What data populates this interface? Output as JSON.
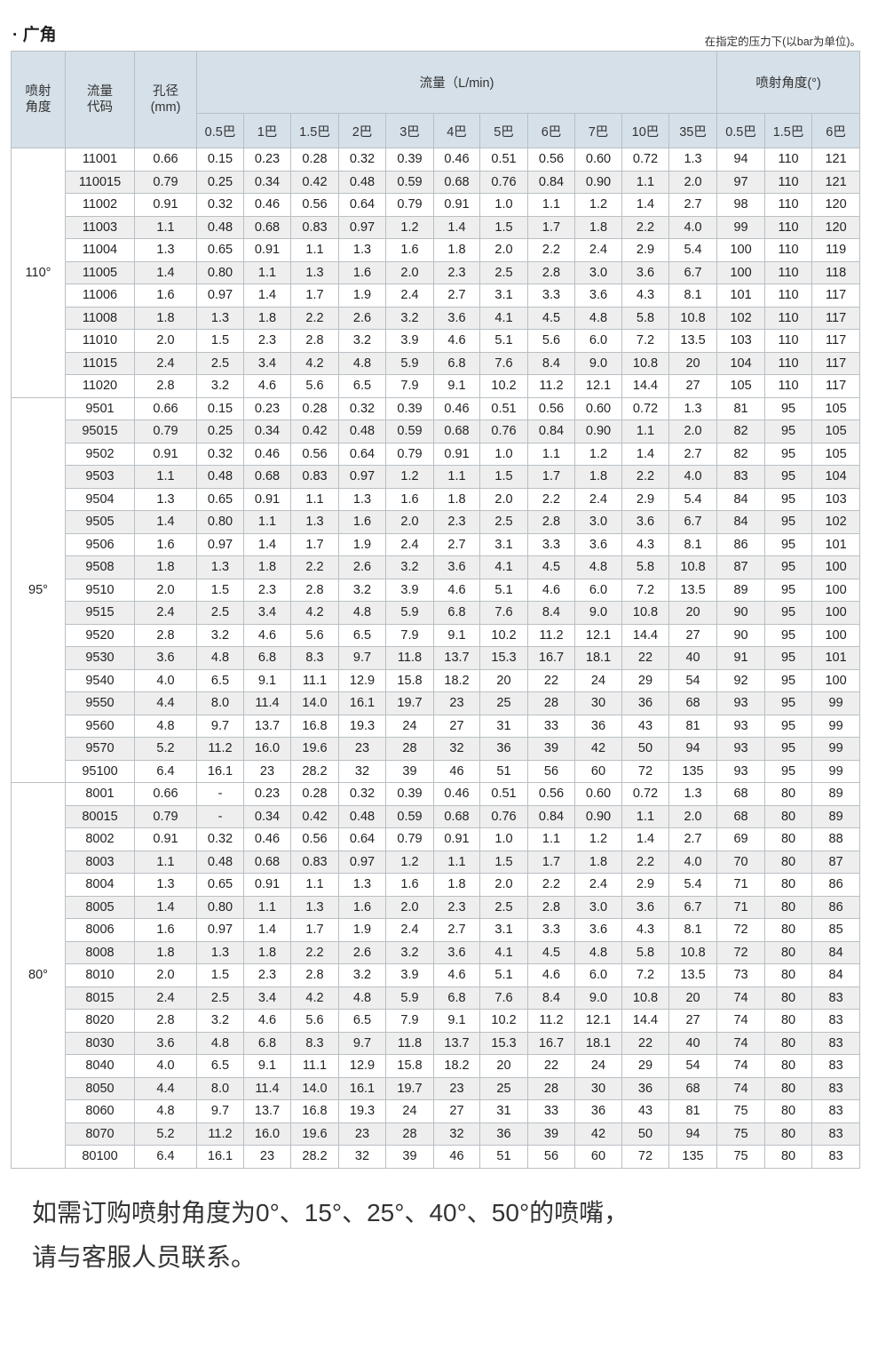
{
  "title": "· 广角",
  "note": "在指定的压力下(以bar为单位)。",
  "header": {
    "spray_angle": "喷射\n角度",
    "flow_code": "流量\n代码",
    "orifice": "孔径\n(mm)",
    "flow_group": "流量（L/min)",
    "angle_group": "喷射角度(°)",
    "flow_pressures": [
      "0.5巴",
      "1巴",
      "1.5巴",
      "2巴",
      "3巴",
      "4巴",
      "5巴",
      "6巴",
      "7巴",
      "10巴",
      "35巴"
    ],
    "angle_pressures": [
      "0.5巴",
      "1.5巴",
      "6巴"
    ]
  },
  "groups": [
    {
      "angle": "110°",
      "rows": [
        [
          "11001",
          "0.66",
          "0.15",
          "0.23",
          "0.28",
          "0.32",
          "0.39",
          "0.46",
          "0.51",
          "0.56",
          "0.60",
          "0.72",
          "1.3",
          "94",
          "110",
          "121"
        ],
        [
          "110015",
          "0.79",
          "0.25",
          "0.34",
          "0.42",
          "0.48",
          "0.59",
          "0.68",
          "0.76",
          "0.84",
          "0.90",
          "1.1",
          "2.0",
          "97",
          "110",
          "121"
        ],
        [
          "11002",
          "0.91",
          "0.32",
          "0.46",
          "0.56",
          "0.64",
          "0.79",
          "0.91",
          "1.0",
          "1.1",
          "1.2",
          "1.4",
          "2.7",
          "98",
          "110",
          "120"
        ],
        [
          "11003",
          "1.1",
          "0.48",
          "0.68",
          "0.83",
          "0.97",
          "1.2",
          "1.4",
          "1.5",
          "1.7",
          "1.8",
          "2.2",
          "4.0",
          "99",
          "110",
          "120"
        ],
        [
          "11004",
          "1.3",
          "0.65",
          "0.91",
          "1.1",
          "1.3",
          "1.6",
          "1.8",
          "2.0",
          "2.2",
          "2.4",
          "2.9",
          "5.4",
          "100",
          "110",
          "119"
        ],
        [
          "11005",
          "1.4",
          "0.80",
          "1.1",
          "1.3",
          "1.6",
          "2.0",
          "2.3",
          "2.5",
          "2.8",
          "3.0",
          "3.6",
          "6.7",
          "100",
          "110",
          "118"
        ],
        [
          "11006",
          "1.6",
          "0.97",
          "1.4",
          "1.7",
          "1.9",
          "2.4",
          "2.7",
          "3.1",
          "3.3",
          "3.6",
          "4.3",
          "8.1",
          "101",
          "110",
          "117"
        ],
        [
          "11008",
          "1.8",
          "1.3",
          "1.8",
          "2.2",
          "2.6",
          "3.2",
          "3.6",
          "4.1",
          "4.5",
          "4.8",
          "5.8",
          "10.8",
          "102",
          "110",
          "117"
        ],
        [
          "11010",
          "2.0",
          "1.5",
          "2.3",
          "2.8",
          "3.2",
          "3.9",
          "4.6",
          "5.1",
          "5.6",
          "6.0",
          "7.2",
          "13.5",
          "103",
          "110",
          "117"
        ],
        [
          "11015",
          "2.4",
          "2.5",
          "3.4",
          "4.2",
          "4.8",
          "5.9",
          "6.8",
          "7.6",
          "8.4",
          "9.0",
          "10.8",
          "20",
          "104",
          "110",
          "117"
        ],
        [
          "11020",
          "2.8",
          "3.2",
          "4.6",
          "5.6",
          "6.5",
          "7.9",
          "9.1",
          "10.2",
          "11.2",
          "12.1",
          "14.4",
          "27",
          "105",
          "110",
          "117"
        ]
      ]
    },
    {
      "angle": "95°",
      "rows": [
        [
          "9501",
          "0.66",
          "0.15",
          "0.23",
          "0.28",
          "0.32",
          "0.39",
          "0.46",
          "0.51",
          "0.56",
          "0.60",
          "0.72",
          "1.3",
          "81",
          "95",
          "105"
        ],
        [
          "95015",
          "0.79",
          "0.25",
          "0.34",
          "0.42",
          "0.48",
          "0.59",
          "0.68",
          "0.76",
          "0.84",
          "0.90",
          "1.1",
          "2.0",
          "82",
          "95",
          "105"
        ],
        [
          "9502",
          "0.91",
          "0.32",
          "0.46",
          "0.56",
          "0.64",
          "0.79",
          "0.91",
          "1.0",
          "1.1",
          "1.2",
          "1.4",
          "2.7",
          "82",
          "95",
          "105"
        ],
        [
          "9503",
          "1.1",
          "0.48",
          "0.68",
          "0.83",
          "0.97",
          "1.2",
          "1.1",
          "1.5",
          "1.7",
          "1.8",
          "2.2",
          "4.0",
          "83",
          "95",
          "104"
        ],
        [
          "9504",
          "1.3",
          "0.65",
          "0.91",
          "1.1",
          "1.3",
          "1.6",
          "1.8",
          "2.0",
          "2.2",
          "2.4",
          "2.9",
          "5.4",
          "84",
          "95",
          "103"
        ],
        [
          "9505",
          "1.4",
          "0.80",
          "1.1",
          "1.3",
          "1.6",
          "2.0",
          "2.3",
          "2.5",
          "2.8",
          "3.0",
          "3.6",
          "6.7",
          "84",
          "95",
          "102"
        ],
        [
          "9506",
          "1.6",
          "0.97",
          "1.4",
          "1.7",
          "1.9",
          "2.4",
          "2.7",
          "3.1",
          "3.3",
          "3.6",
          "4.3",
          "8.1",
          "86",
          "95",
          "101"
        ],
        [
          "9508",
          "1.8",
          "1.3",
          "1.8",
          "2.2",
          "2.6",
          "3.2",
          "3.6",
          "4.1",
          "4.5",
          "4.8",
          "5.8",
          "10.8",
          "87",
          "95",
          "100"
        ],
        [
          "9510",
          "2.0",
          "1.5",
          "2.3",
          "2.8",
          "3.2",
          "3.9",
          "4.6",
          "5.1",
          "4.6",
          "6.0",
          "7.2",
          "13.5",
          "89",
          "95",
          "100"
        ],
        [
          "9515",
          "2.4",
          "2.5",
          "3.4",
          "4.2",
          "4.8",
          "5.9",
          "6.8",
          "7.6",
          "8.4",
          "9.0",
          "10.8",
          "20",
          "90",
          "95",
          "100"
        ],
        [
          "9520",
          "2.8",
          "3.2",
          "4.6",
          "5.6",
          "6.5",
          "7.9",
          "9.1",
          "10.2",
          "11.2",
          "12.1",
          "14.4",
          "27",
          "90",
          "95",
          "100"
        ],
        [
          "9530",
          "3.6",
          "4.8",
          "6.8",
          "8.3",
          "9.7",
          "11.8",
          "13.7",
          "15.3",
          "16.7",
          "18.1",
          "22",
          "40",
          "91",
          "95",
          "101"
        ],
        [
          "9540",
          "4.0",
          "6.5",
          "9.1",
          "11.1",
          "12.9",
          "15.8",
          "18.2",
          "20",
          "22",
          "24",
          "29",
          "54",
          "92",
          "95",
          "100"
        ],
        [
          "9550",
          "4.4",
          "8.0",
          "11.4",
          "14.0",
          "16.1",
          "19.7",
          "23",
          "25",
          "28",
          "30",
          "36",
          "68",
          "93",
          "95",
          "99"
        ],
        [
          "9560",
          "4.8",
          "9.7",
          "13.7",
          "16.8",
          "19.3",
          "24",
          "27",
          "31",
          "33",
          "36",
          "43",
          "81",
          "93",
          "95",
          "99"
        ],
        [
          "9570",
          "5.2",
          "11.2",
          "16.0",
          "19.6",
          "23",
          "28",
          "32",
          "36",
          "39",
          "42",
          "50",
          "94",
          "93",
          "95",
          "99"
        ],
        [
          "95100",
          "6.4",
          "16.1",
          "23",
          "28.2",
          "32",
          "39",
          "46",
          "51",
          "56",
          "60",
          "72",
          "135",
          "93",
          "95",
          "99"
        ]
      ]
    },
    {
      "angle": "80°",
      "rows": [
        [
          "8001",
          "0.66",
          "-",
          "0.23",
          "0.28",
          "0.32",
          "0.39",
          "0.46",
          "0.51",
          "0.56",
          "0.60",
          "0.72",
          "1.3",
          "68",
          "80",
          "89"
        ],
        [
          "80015",
          "0.79",
          "-",
          "0.34",
          "0.42",
          "0.48",
          "0.59",
          "0.68",
          "0.76",
          "0.84",
          "0.90",
          "1.1",
          "2.0",
          "68",
          "80",
          "89"
        ],
        [
          "8002",
          "0.91",
          "0.32",
          "0.46",
          "0.56",
          "0.64",
          "0.79",
          "0.91",
          "1.0",
          "1.1",
          "1.2",
          "1.4",
          "2.7",
          "69",
          "80",
          "88"
        ],
        [
          "8003",
          "1.1",
          "0.48",
          "0.68",
          "0.83",
          "0.97",
          "1.2",
          "1.1",
          "1.5",
          "1.7",
          "1.8",
          "2.2",
          "4.0",
          "70",
          "80",
          "87"
        ],
        [
          "8004",
          "1.3",
          "0.65",
          "0.91",
          "1.1",
          "1.3",
          "1.6",
          "1.8",
          "2.0",
          "2.2",
          "2.4",
          "2.9",
          "5.4",
          "71",
          "80",
          "86"
        ],
        [
          "8005",
          "1.4",
          "0.80",
          "1.1",
          "1.3",
          "1.6",
          "2.0",
          "2.3",
          "2.5",
          "2.8",
          "3.0",
          "3.6",
          "6.7",
          "71",
          "80",
          "86"
        ],
        [
          "8006",
          "1.6",
          "0.97",
          "1.4",
          "1.7",
          "1.9",
          "2.4",
          "2.7",
          "3.1",
          "3.3",
          "3.6",
          "4.3",
          "8.1",
          "72",
          "80",
          "85"
        ],
        [
          "8008",
          "1.8",
          "1.3",
          "1.8",
          "2.2",
          "2.6",
          "3.2",
          "3.6",
          "4.1",
          "4.5",
          "4.8",
          "5.8",
          "10.8",
          "72",
          "80",
          "84"
        ],
        [
          "8010",
          "2.0",
          "1.5",
          "2.3",
          "2.8",
          "3.2",
          "3.9",
          "4.6",
          "5.1",
          "4.6",
          "6.0",
          "7.2",
          "13.5",
          "73",
          "80",
          "84"
        ],
        [
          "8015",
          "2.4",
          "2.5",
          "3.4",
          "4.2",
          "4.8",
          "5.9",
          "6.8",
          "7.6",
          "8.4",
          "9.0",
          "10.8",
          "20",
          "74",
          "80",
          "83"
        ],
        [
          "8020",
          "2.8",
          "3.2",
          "4.6",
          "5.6",
          "6.5",
          "7.9",
          "9.1",
          "10.2",
          "11.2",
          "12.1",
          "14.4",
          "27",
          "74",
          "80",
          "83"
        ],
        [
          "8030",
          "3.6",
          "4.8",
          "6.8",
          "8.3",
          "9.7",
          "11.8",
          "13.7",
          "15.3",
          "16.7",
          "18.1",
          "22",
          "40",
          "74",
          "80",
          "83"
        ],
        [
          "8040",
          "4.0",
          "6.5",
          "9.1",
          "11.1",
          "12.9",
          "15.8",
          "18.2",
          "20",
          "22",
          "24",
          "29",
          "54",
          "74",
          "80",
          "83"
        ],
        [
          "8050",
          "4.4",
          "8.0",
          "11.4",
          "14.0",
          "16.1",
          "19.7",
          "23",
          "25",
          "28",
          "30",
          "36",
          "68",
          "74",
          "80",
          "83"
        ],
        [
          "8060",
          "4.8",
          "9.7",
          "13.7",
          "16.8",
          "19.3",
          "24",
          "27",
          "31",
          "33",
          "36",
          "43",
          "81",
          "75",
          "80",
          "83"
        ],
        [
          "8070",
          "5.2",
          "11.2",
          "16.0",
          "19.6",
          "23",
          "28",
          "32",
          "36",
          "39",
          "42",
          "50",
          "94",
          "75",
          "80",
          "83"
        ],
        [
          "80100",
          "6.4",
          "16.1",
          "23",
          "28.2",
          "32",
          "39",
          "46",
          "51",
          "56",
          "60",
          "72",
          "135",
          "75",
          "80",
          "83"
        ]
      ]
    }
  ],
  "footer": {
    "line1": "如需订购喷射角度为0°、15°、25°、40°、50°的喷嘴，",
    "line2": "请与客服人员联系。"
  }
}
